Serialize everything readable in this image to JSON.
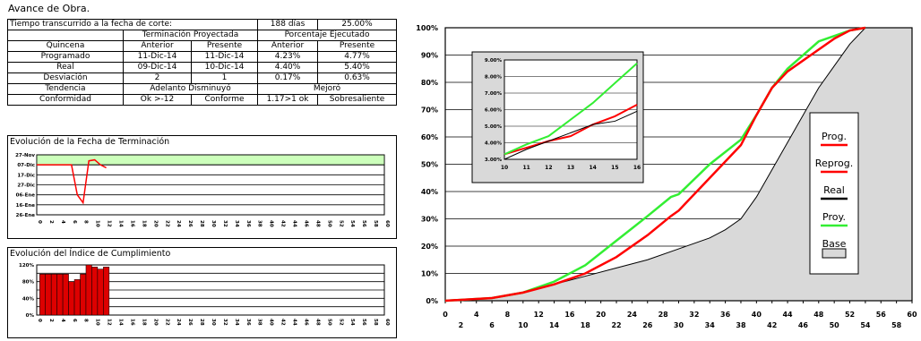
{
  "header": {
    "title": "Avance de Obra."
  },
  "summary": {
    "elapsed_label": "Tiempo transcurrido a la fecha de corte:",
    "elapsed_days": "188 días",
    "elapsed_pct": "25.00%",
    "group_termination": "Terminación Proyectada",
    "group_percentage": "Porcentaje Ejecutado",
    "col_quincena": "Quincena",
    "col_anterior": "Anterior",
    "col_presente": "Presente",
    "rows": [
      {
        "label": "Programado",
        "t_ant": "11-Dic-14",
        "t_pre": "11-Dic-14",
        "p_ant": "4.23%",
        "p_pre": "4.77%"
      },
      {
        "label": "Real",
        "t_ant": "09-Dic-14",
        "t_pre": "10-Dic-14",
        "p_ant": "4.40%",
        "p_pre": "5.40%"
      },
      {
        "label": "Desviación",
        "t_ant": "2",
        "t_pre": "1",
        "p_ant": "0.17%",
        "p_pre": "0.63%"
      }
    ],
    "tendencia_label": "Tendencia",
    "tendencia_term": "Adelanto Disminuyó",
    "tendencia_pct": "Mejoró",
    "conformidad_label": "Conformidad",
    "conf_1": "Ok >-12",
    "conf_2": "Conforme",
    "conf_3": "1.17>1 ok",
    "conf_4": "Sobresaliente"
  },
  "colors": {
    "red": "#ff0000",
    "green": "#33ee33",
    "black": "#000000",
    "base_fill": "#d9d9d9",
    "band": "#ccffbb",
    "bar": "#dd0000"
  },
  "chart_data": [
    {
      "type": "line",
      "title": "Evolución de la Fecha de Terminación",
      "y_ticks": [
        "27-Nov",
        "07-Dic",
        "17-Dic",
        "27-Dic",
        "06-Ene",
        "16-Ene",
        "26-Ene"
      ],
      "x_ticks": [
        0,
        2,
        4,
        6,
        8,
        10,
        12,
        14,
        16,
        18,
        20,
        22,
        24,
        26,
        28,
        30,
        32,
        34,
        36,
        38,
        40,
        42,
        44,
        46,
        48,
        50,
        52,
        54,
        56,
        58,
        60
      ],
      "series": [
        {
          "x": [
            0,
            1,
            2,
            3,
            4,
            5,
            6,
            7,
            8,
            9,
            10,
            11,
            12
          ],
          "y_days_after_27nov": [
            10,
            10,
            10,
            10,
            10,
            10,
            10,
            40,
            48,
            6,
            5,
            10,
            13
          ]
        }
      ]
    },
    {
      "type": "bar",
      "title": "Evolución del Índice de Cumplimiento",
      "y_ticks": [
        "0%",
        "40%",
        "80%",
        "120%"
      ],
      "x_ticks": [
        0,
        2,
        4,
        6,
        8,
        10,
        12,
        14,
        16,
        18,
        20,
        22,
        24,
        26,
        28,
        30,
        32,
        34,
        36,
        38,
        40,
        42,
        44,
        46,
        48,
        50,
        52,
        54,
        56,
        58,
        60
      ],
      "x": [
        1,
        2,
        3,
        4,
        5,
        6,
        7,
        8,
        9,
        10,
        11,
        12
      ],
      "values": [
        98,
        98,
        98,
        98,
        98,
        80,
        85,
        98,
        120,
        115,
        110,
        115
      ]
    },
    {
      "type": "line",
      "x_ticks_top": [
        0,
        4,
        8,
        12,
        16,
        20,
        24,
        28,
        32,
        36,
        40,
        44,
        48,
        52,
        56,
        60
      ],
      "x_ticks_bottom": [
        2,
        6,
        10,
        14,
        18,
        22,
        26,
        30,
        34,
        38,
        42,
        46,
        50,
        54,
        58
      ],
      "y_ticks": [
        "0%",
        "10%",
        "20%",
        "30%",
        "40%",
        "50%",
        "60%",
        "70%",
        "80%",
        "90%",
        "100%"
      ],
      "xlim": [
        0,
        60
      ],
      "ylim": [
        0,
        100
      ],
      "legend": [
        "Prog.",
        "Reprog.",
        "Real",
        "Proy.",
        "Base"
      ],
      "series": [
        {
          "name": "Prog.",
          "x": [
            0,
            6,
            10,
            14,
            18,
            22,
            26,
            29,
            30,
            34,
            38,
            40,
            42,
            44,
            48,
            50,
            52,
            54
          ],
          "y": [
            0,
            1,
            3,
            6,
            10,
            16,
            24,
            31,
            33,
            45,
            57,
            68,
            78,
            84,
            92,
            96,
            99,
            100
          ]
        },
        {
          "name": "Proy.",
          "x": [
            0,
            6,
            10,
            14,
            18,
            22,
            26,
            29,
            30,
            34,
            38,
            40,
            42,
            44,
            48,
            50,
            52,
            54
          ],
          "y": [
            0,
            1,
            3,
            7,
            13,
            22,
            31,
            38,
            39,
            50,
            59,
            68,
            78,
            85,
            95,
            97,
            99,
            100
          ]
        },
        {
          "name": "Base",
          "x": [
            0,
            6,
            10,
            14,
            18,
            22,
            26,
            30,
            34,
            36,
            38,
            40,
            42,
            44,
            46,
            48,
            50,
            52,
            54
          ],
          "y": [
            0,
            1,
            3,
            6,
            9,
            12,
            15,
            19,
            23,
            26,
            30,
            38,
            48,
            58,
            68,
            78,
            86,
            94,
            100
          ]
        }
      ],
      "inset": {
        "xlim": [
          10,
          16
        ],
        "ylim": [
          3,
          9
        ],
        "x_ticks": [
          10,
          11,
          12,
          13,
          14,
          15,
          16
        ],
        "y_ticks": [
          "3.00%",
          "4.00%",
          "5.00%",
          "6.00%",
          "7.00%",
          "8.00%",
          "9.00%"
        ],
        "series": [
          {
            "name": "Prog.",
            "x": [
              10,
              11,
              12,
              13,
              14,
              15,
              16
            ],
            "y": [
              3.3,
              3.7,
              4.1,
              4.4,
              5.1,
              5.6,
              6.3
            ]
          },
          {
            "name": "Real",
            "x": [
              10,
              11,
              12,
              13,
              14,
              15,
              16
            ],
            "y": [
              3.3,
              3.9,
              4.4,
              5.4,
              6.4,
              7.6,
              8.8
            ]
          },
          {
            "name": "Base",
            "x": [
              10,
              11,
              12,
              13,
              14,
              15,
              16
            ],
            "y": [
              3.0,
              3.6,
              4.1,
              4.6,
              5.1,
              5.3,
              5.9
            ]
          }
        ]
      }
    }
  ]
}
